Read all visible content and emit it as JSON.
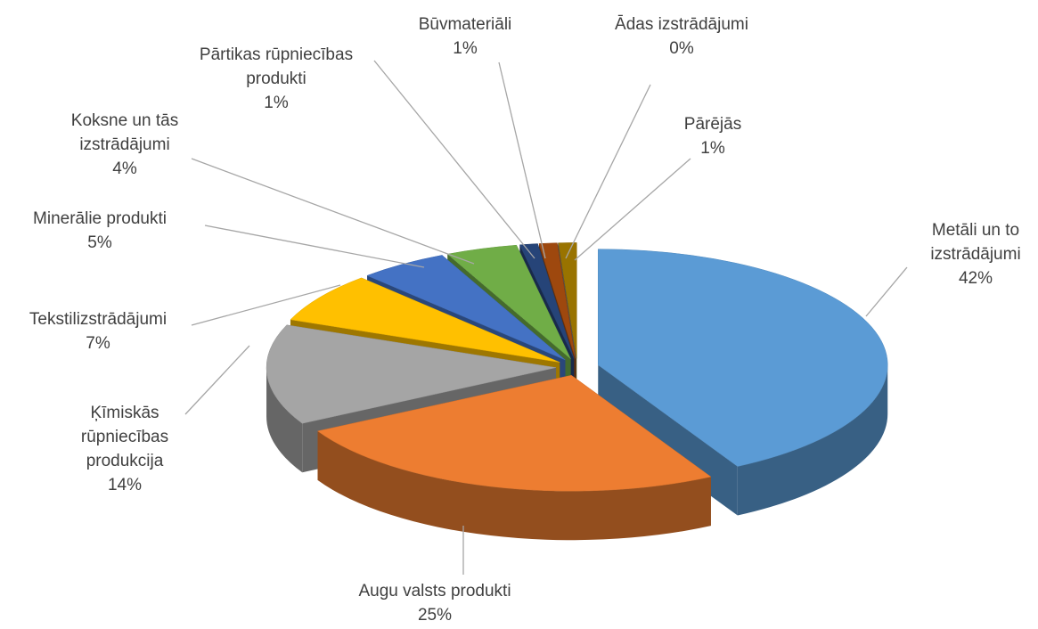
{
  "chart_data": {
    "type": "pie",
    "categories": [
      "Metāli un to izstrādājumi",
      "Augu valsts produkti",
      "Ķīmiskās rūpniecības produkcija",
      "Tekstilizstrādājumi",
      "Minerālie produkti",
      "Koksne un tās izstrādājumi",
      "Pārtikas rūpniecības produkti",
      "Būvmateriāli",
      "Ādas izstrādājumi",
      "Pārējās"
    ],
    "values": [
      42,
      25,
      14,
      7,
      5,
      4,
      1,
      1,
      0,
      1
    ],
    "value_labels": [
      "42%",
      "25%",
      "14%",
      "7%",
      "5%",
      "4%",
      "1%",
      "1%",
      "0%",
      "1%"
    ],
    "colors": [
      "#5b9bd5",
      "#ed7d31",
      "#a5a5a5",
      "#ffc000",
      "#4472c4",
      "#70ad47",
      "#264478",
      "#9e480e",
      "#636363",
      "#997300"
    ]
  }
}
